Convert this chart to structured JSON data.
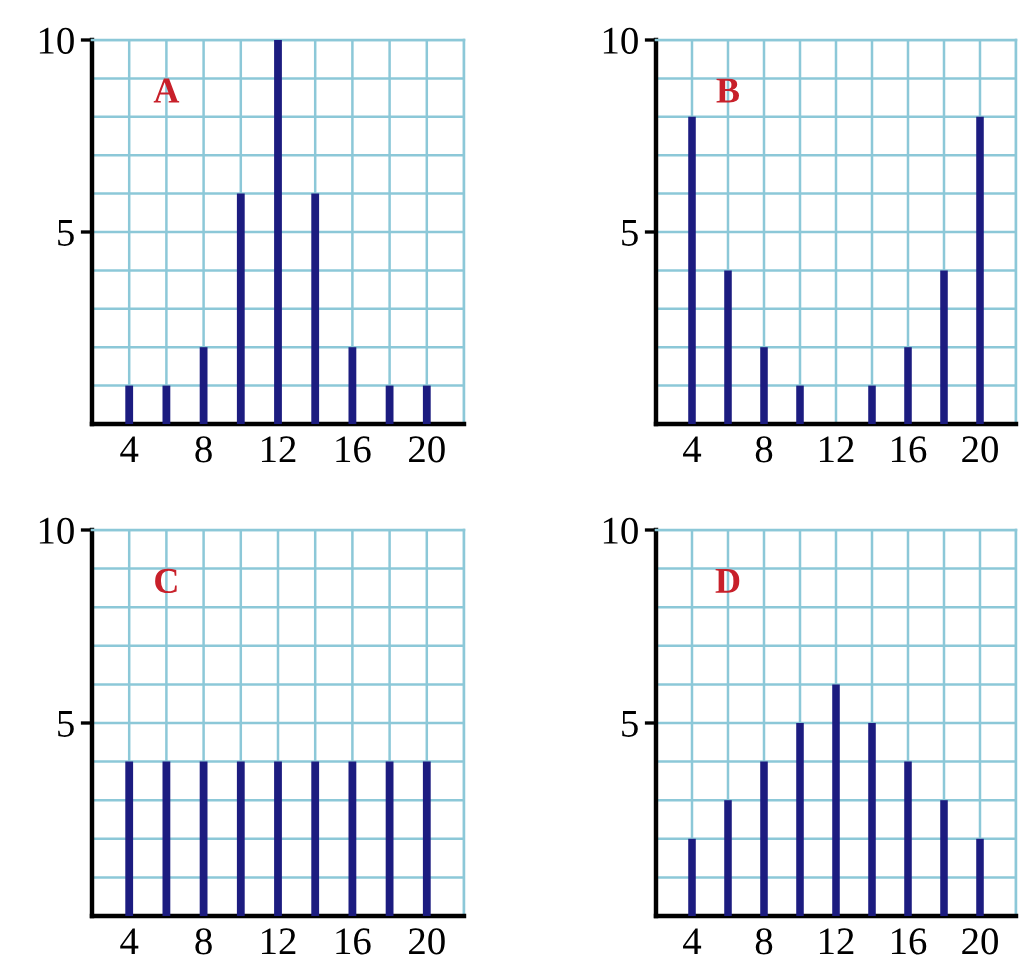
{
  "chart_data": [
    {
      "type": "bar",
      "x": [
        4,
        6,
        8,
        10,
        12,
        14,
        16,
        18,
        20
      ],
      "values": [
        1,
        1,
        2,
        6,
        10,
        6,
        2,
        1,
        1
      ],
      "color": "#1c1c80",
      "xlim": [
        2,
        22
      ],
      "ylim": [
        0,
        10
      ],
      "xticks": [
        {
          "value": 2,
          "label": null
        },
        4,
        {
          "value": 6,
          "label": null
        },
        8,
        {
          "value": 10,
          "label": null
        },
        12,
        {
          "value": 14,
          "label": null
        },
        16,
        {
          "value": 18,
          "label": null
        },
        20,
        {
          "value": 22,
          "label": null
        }
      ],
      "yticks": [
        {
          "value": 1,
          "label": null
        },
        {
          "value": 2,
          "label": null
        },
        {
          "value": 3,
          "label": null
        },
        {
          "value": 4,
          "label": null
        },
        5,
        {
          "value": 6,
          "label": null
        },
        {
          "value": 7,
          "label": null
        },
        {
          "value": 8,
          "label": null
        },
        {
          "value": 9,
          "label": null
        },
        10
      ],
      "grid": true,
      "annotations": [
        "A"
      ]
    },
    {
      "type": "bar",
      "x": [
        4,
        6,
        8,
        10,
        12,
        14,
        16,
        18,
        20
      ],
      "values": [
        8,
        4,
        2,
        1,
        0,
        1,
        2,
        4,
        8
      ],
      "color": "#1c1c80",
      "xlim": [
        2,
        22
      ],
      "ylim": [
        0,
        10
      ],
      "xticks": [
        {
          "value": 2,
          "label": null
        },
        4,
        {
          "value": 6,
          "label": null
        },
        8,
        {
          "value": 10,
          "label": null
        },
        12,
        {
          "value": 14,
          "label": null
        },
        16,
        {
          "value": 18,
          "label": null
        },
        20,
        {
          "value": 22,
          "label": null
        }
      ],
      "yticks": [
        {
          "value": 1,
          "label": null
        },
        {
          "value": 2,
          "label": null
        },
        {
          "value": 3,
          "label": null
        },
        {
          "value": 4,
          "label": null
        },
        5,
        {
          "value": 6,
          "label": null
        },
        {
          "value": 7,
          "label": null
        },
        {
          "value": 8,
          "label": null
        },
        {
          "value": 9,
          "label": null
        },
        10
      ],
      "grid": true,
      "annotations": [
        "B"
      ]
    },
    {
      "type": "bar",
      "x": [
        4,
        6,
        8,
        10,
        12,
        14,
        16,
        18,
        20
      ],
      "values": [
        4,
        4,
        4,
        4,
        4,
        4,
        4,
        4,
        4
      ],
      "color": "#1c1c80",
      "xlim": [
        2,
        22
      ],
      "ylim": [
        0,
        10
      ],
      "xticks": [
        {
          "value": 2,
          "label": null
        },
        4,
        {
          "value": 6,
          "label": null
        },
        8,
        {
          "value": 10,
          "label": null
        },
        12,
        {
          "value": 14,
          "label": null
        },
        16,
        {
          "value": 18,
          "label": null
        },
        20,
        {
          "value": 22,
          "label": null
        }
      ],
      "yticks": [
        {
          "value": 1,
          "label": null
        },
        {
          "value": 2,
          "label": null
        },
        {
          "value": 3,
          "label": null
        },
        {
          "value": 4,
          "label": null
        },
        5,
        {
          "value": 6,
          "label": null
        },
        {
          "value": 7,
          "label": null
        },
        {
          "value": 8,
          "label": null
        },
        {
          "value": 9,
          "label": null
        },
        10
      ],
      "grid": true,
      "annotations": [
        "C"
      ]
    },
    {
      "type": "bar",
      "x": [
        4,
        6,
        8,
        10,
        12,
        14,
        16,
        18,
        20
      ],
      "values": [
        2,
        3,
        4,
        5,
        6,
        5,
        4,
        3,
        2
      ],
      "color": "#1c1c80",
      "xlim": [
        2,
        22
      ],
      "ylim": [
        0,
        10
      ],
      "xticks": [
        {
          "value": 2,
          "label": null
        },
        4,
        {
          "value": 6,
          "label": null
        },
        8,
        {
          "value": 10,
          "label": null
        },
        12,
        {
          "value": 14,
          "label": null
        },
        16,
        {
          "value": 18,
          "label": null
        },
        20,
        {
          "value": 22,
          "label": null
        }
      ],
      "yticks": [
        {
          "value": 1,
          "label": null
        },
        {
          "value": 2,
          "label": null
        },
        {
          "value": 3,
          "label": null
        },
        {
          "value": 4,
          "label": null
        },
        5,
        {
          "value": 6,
          "label": null
        },
        {
          "value": 7,
          "label": null
        },
        {
          "value": 8,
          "label": null
        },
        {
          "value": 9,
          "label": null
        },
        10
      ],
      "grid": true,
      "annotations": [
        "D"
      ]
    }
  ]
}
